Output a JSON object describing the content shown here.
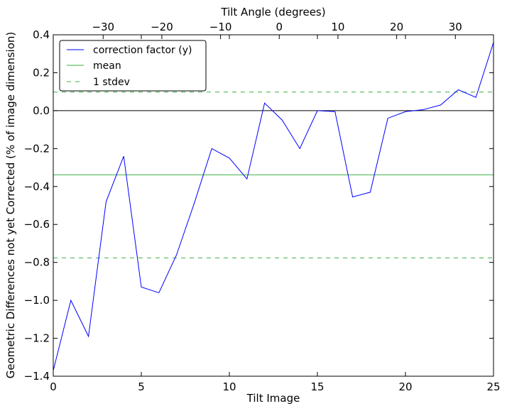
{
  "chart_data": {
    "type": "line",
    "xlabel": "Tilt Image",
    "ylabel": "Geometric Differences not yet Corrected (% of image dimension)",
    "top_xlabel": "Tilt Angle (degrees)",
    "xlim": [
      0,
      25
    ],
    "ylim": [
      -1.4,
      0.4
    ],
    "top_xlim": [
      -38.5,
      36.5
    ],
    "x_ticks": [
      0,
      5,
      10,
      15,
      20,
      25
    ],
    "x_tick_labels": [
      "0",
      "5",
      "10",
      "15",
      "20",
      "25"
    ],
    "y_ticks": [
      -1.4,
      -1.2,
      -1.0,
      -0.8,
      -0.6,
      -0.4,
      -0.2,
      0.0,
      0.2,
      0.4
    ],
    "y_tick_labels": [
      "−1.4",
      "−1.2",
      "−1.0",
      "−0.8",
      "−0.6",
      "−0.4",
      "−0.2",
      "0.0",
      "0.2",
      "0.4"
    ],
    "top_ticks": [
      -30,
      -20,
      -10,
      0,
      10,
      20,
      30
    ],
    "top_tick_labels": [
      "−30",
      "−20",
      "−10",
      "0",
      "10",
      "20",
      "30"
    ],
    "series": [
      {
        "name": "correction factor (y)",
        "color": "#0000ff",
        "style": "solid",
        "x": [
          0,
          1,
          2,
          3,
          4,
          5,
          6,
          7,
          8,
          9,
          10,
          11,
          12,
          13,
          14,
          15,
          16,
          17,
          18,
          19,
          20,
          21,
          22,
          23,
          24,
          25
        ],
        "y": [
          -1.37,
          -1.0,
          -1.19,
          -0.48,
          -0.24,
          -0.93,
          -0.96,
          -0.76,
          -0.49,
          -0.2,
          -0.25,
          -0.36,
          0.04,
          -0.05,
          -0.2,
          0.0,
          -0.005,
          -0.455,
          -0.43,
          -0.04,
          -0.005,
          0.005,
          0.03,
          0.11,
          0.07,
          0.36
        ]
      },
      {
        "name": "mean",
        "color": "#3cb043",
        "style": "solid",
        "value": -0.338
      },
      {
        "name": "1 stdev",
        "color": "#3cb043",
        "style": "dashed",
        "values": [
          0.098,
          -0.776
        ]
      }
    ],
    "zero_line": 0.0,
    "legend": "top-left",
    "grid": false
  }
}
